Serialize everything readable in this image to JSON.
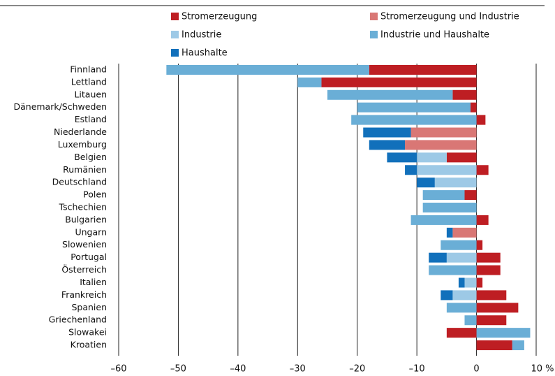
{
  "chart_data": {
    "type": "stacked_barh",
    "categories": [
      "Finnland",
      "Lettland",
      "Litauen",
      "Dänemark/Schweden",
      "Estland",
      "Niederlande",
      "Luxemburg",
      "Belgien",
      "Rumänien",
      "Deutschland",
      "Polen",
      "Tschechien",
      "Bulgarien",
      "Ungarn",
      "Slowenien",
      "Portugal",
      "Österreich",
      "Italien",
      "Frankreich",
      "Spanien",
      "Griechenland",
      "Slowakei",
      "Kroatien"
    ],
    "series": [
      {
        "name": "Stromerzeugung",
        "color": "#be1e23",
        "values": [
          -18,
          -26,
          -4,
          -1,
          1.5,
          null,
          null,
          -5,
          2,
          null,
          -2,
          null,
          2,
          null,
          1,
          4,
          4,
          1,
          5,
          7,
          5,
          -5,
          6
        ]
      },
      {
        "name": "Stromerzeugung und Industrie",
        "color": "#d97775",
        "values": [
          null,
          null,
          null,
          null,
          null,
          -11,
          -12,
          null,
          null,
          null,
          null,
          null,
          null,
          -4,
          null,
          null,
          null,
          null,
          null,
          null,
          null,
          null,
          null
        ]
      },
      {
        "name": "Industrie",
        "color": "#9dc9e6",
        "values": [
          null,
          null,
          null,
          null,
          null,
          null,
          null,
          -5,
          -10,
          -7,
          null,
          null,
          null,
          null,
          null,
          -5,
          null,
          -2,
          -4,
          null,
          null,
          null,
          null
        ]
      },
      {
        "name": "Industrie und Haushalte",
        "color": "#6aaed6",
        "values": [
          -34,
          -4,
          -21,
          -19,
          -21,
          null,
          null,
          null,
          null,
          null,
          -7,
          -9,
          -11,
          null,
          -6,
          null,
          -8,
          null,
          null,
          -5,
          -2,
          9,
          2
        ]
      },
      {
        "name": "Haushalte",
        "color": "#1170bb",
        "values": [
          null,
          null,
          null,
          null,
          null,
          -8,
          -6,
          -5,
          -2,
          -3,
          null,
          null,
          null,
          -1,
          null,
          -3,
          null,
          -1,
          -2,
          null,
          null,
          null,
          null
        ]
      }
    ],
    "xlim": [
      -60,
      10
    ],
    "xticks": [
      {
        "value": -60,
        "label": "–60"
      },
      {
        "value": -50,
        "label": "–50"
      },
      {
        "value": -40,
        "label": "–40"
      },
      {
        "value": -30,
        "label": "–30"
      },
      {
        "value": -20,
        "label": "–20"
      },
      {
        "value": -10,
        "label": "–10"
      },
      0,
      {
        "value": 10,
        "label": "10 %"
      }
    ],
    "grid": true
  }
}
